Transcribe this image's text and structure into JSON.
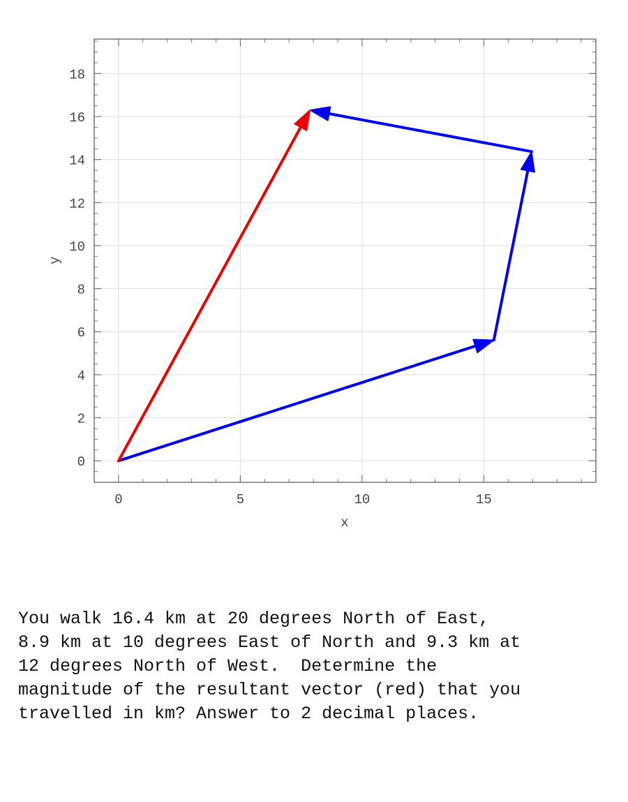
{
  "chart_data": {
    "type": "line",
    "xlabel": "x",
    "ylabel": "y",
    "xlim": [
      -1,
      19.6
    ],
    "ylim": [
      -1,
      19.6
    ],
    "xticks": [
      0,
      5,
      10,
      15
    ],
    "yticks": [
      0,
      2,
      4,
      6,
      8,
      10,
      12,
      14,
      16,
      18
    ],
    "grid": true,
    "vectors": [
      {
        "name": "",
        "from": [
          0,
          0
        ],
        "to": [
          15.41,
          5.61
        ],
        "color": "#0000ee"
      },
      {
        "name": "",
        "from": [
          15.41,
          5.61
        ],
        "to": [
          16.96,
          14.37
        ],
        "color": "#0000ee"
      },
      {
        "name": "",
        "from": [
          16.96,
          14.37
        ],
        "to": [
          7.86,
          16.3
        ],
        "color": "#0000ee"
      },
      {
        "name": "resultant",
        "from": [
          0,
          0
        ],
        "to": [
          7.86,
          16.3
        ],
        "color": "#ee0000"
      }
    ]
  },
  "question": {
    "lines": [
      "You walk 16.4 km at 20 degrees North of East,",
      "8.9 km at 10 degrees East of North and 9.3 km at",
      "12 degrees North of West.  Determine the",
      "magnitude of the resultant vector (red) that you",
      "travelled in km? Answer to 2 decimal places."
    ]
  }
}
